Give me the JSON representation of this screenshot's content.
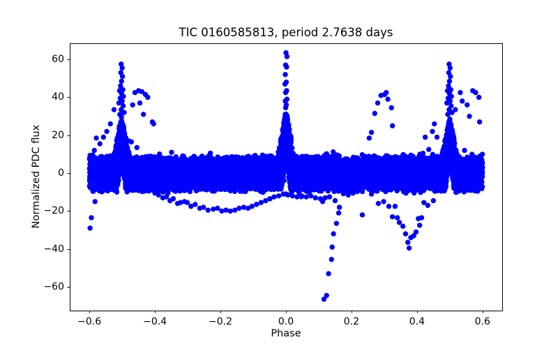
{
  "window": {
    "background": "#ffffff"
  },
  "chart_data": {
    "type": "scatter",
    "title": "TIC 0160585813, period 2.7638 days",
    "xlabel": "Phase",
    "ylabel": "Normalized PDC flux",
    "xlim": [
      -0.66,
      0.66
    ],
    "ylim": [
      -72.5,
      68.5
    ],
    "xticks": [
      -0.6,
      -0.4,
      -0.2,
      0.0,
      0.2,
      0.4,
      0.6
    ],
    "xtick_labels": [
      "−0.6",
      "−0.4",
      "−0.2",
      "0.0",
      "0.2",
      "0.4",
      "0.6"
    ],
    "yticks": [
      60,
      40,
      20,
      0,
      -20,
      -40,
      -60
    ],
    "ytick_labels": [
      "60",
      "40",
      "20",
      "0",
      "−20",
      "−40",
      "−60"
    ],
    "grid": false,
    "legend": null,
    "axis_color": "#000000",
    "marker": {
      "shape": "circle",
      "color": "#0000ff",
      "radius_px": 3.7
    },
    "description": "Phase-folded light curve: dense noise band around flux 0 spanning phase -0.6 to 0.6, narrow brightening spikes at phases -0.5, 0.0 and +0.5 (sparse columns above reaching ~64 at center, ~58 at sides), scattered outlier arcs below the band, a deep dip to ~-66 near phase 0.12 and a V-shaped dip to ~-40 near phase 0.38",
    "components": {
      "noise_band": {
        "x_min": -0.6,
        "x_max": 0.6,
        "y_top": 8.2,
        "y_bottom": -8.8,
        "edge_sigma": 1.0,
        "n_points": 6500,
        "seed": 20240613
      },
      "eclipse_peaks": [
        {
          "center": -0.502,
          "width": 0.026,
          "height": 29,
          "notch_width": 0.013,
          "n_points": 600
        },
        {
          "center": 0.0,
          "width": 0.026,
          "height": 33,
          "notch_width": 0.014,
          "n_points": 700
        },
        {
          "center": 0.5,
          "width": 0.026,
          "height": 29,
          "notch_width": 0.013,
          "n_points": 600
        }
      ],
      "outliers": {
        "above_center_peak": [
          [
            0.0,
            63.5
          ],
          [
            0.003,
            61.5
          ],
          [
            -0.001,
            57.0
          ],
          [
            0.002,
            56.0
          ],
          [
            -0.002,
            52.0
          ],
          [
            0.001,
            48.0
          ],
          [
            -0.003,
            47.0
          ],
          [
            0.002,
            43.5
          ],
          [
            -0.001,
            42.5
          ],
          [
            0.003,
            39.0
          ],
          [
            -0.002,
            38.0
          ],
          [
            0.001,
            36.0
          ],
          [
            -0.001,
            34.5
          ]
        ],
        "above_left_peak": [
          [
            -0.503,
            57.5
          ],
          [
            -0.5,
            55.5
          ],
          [
            -0.504,
            53.0
          ],
          [
            -0.499,
            51.0
          ],
          [
            -0.502,
            48.5
          ],
          [
            -0.505,
            46.0
          ],
          [
            -0.498,
            44.0
          ],
          [
            -0.508,
            43.5
          ],
          [
            -0.502,
            42.0
          ],
          [
            -0.496,
            40.5
          ],
          [
            -0.506,
            39.5
          ],
          [
            -0.5,
            38.0
          ],
          [
            -0.51,
            37.0
          ],
          [
            -0.497,
            35.5
          ],
          [
            -0.503,
            33.5
          ],
          [
            -0.494,
            32.0
          ],
          [
            -0.507,
            31.0
          ]
        ],
        "above_right_peak": [
          [
            0.498,
            57.5
          ],
          [
            0.501,
            55.5
          ],
          [
            0.497,
            53.0
          ],
          [
            0.502,
            51.0
          ],
          [
            0.499,
            48.5
          ],
          [
            0.496,
            46.0
          ],
          [
            0.503,
            44.0
          ],
          [
            0.493,
            43.5
          ],
          [
            0.499,
            42.0
          ],
          [
            0.505,
            40.5
          ],
          [
            0.495,
            39.5
          ],
          [
            0.501,
            38.0
          ],
          [
            0.491,
            37.0
          ],
          [
            0.504,
            35.5
          ],
          [
            0.498,
            33.5
          ],
          [
            0.507,
            32.0
          ],
          [
            0.494,
            31.0
          ]
        ],
        "left_peak_shoulders": [
          [
            -0.585,
            12.0
          ],
          [
            -0.579,
            18.5
          ],
          [
            -0.568,
            15.5
          ],
          [
            -0.557,
            19.0
          ],
          [
            -0.547,
            22.0
          ],
          [
            -0.536,
            26.0
          ],
          [
            -0.525,
            33.5
          ],
          [
            -0.487,
            14.0
          ],
          [
            -0.48,
            17.0
          ],
          [
            -0.472,
            16.5
          ],
          [
            -0.468,
            36.0
          ],
          [
            -0.461,
            42.5
          ],
          [
            -0.455,
            13.5
          ],
          [
            -0.45,
            43.5
          ],
          [
            -0.446,
            37.0
          ],
          [
            -0.44,
            43.0
          ],
          [
            -0.435,
            31.0
          ],
          [
            -0.429,
            41.5
          ],
          [
            -0.422,
            40.0
          ],
          [
            -0.408,
            27.0
          ],
          [
            -0.404,
            26.0
          ]
        ],
        "right_peak_shoulders": [
          [
            0.418,
            10.5
          ],
          [
            0.425,
            19.0
          ],
          [
            0.436,
            12.5
          ],
          [
            0.447,
            22.0
          ],
          [
            0.453,
            26.0
          ],
          [
            0.461,
            19.0
          ],
          [
            0.517,
            33.5
          ],
          [
            0.532,
            42.5
          ],
          [
            0.538,
            38.0
          ],
          [
            0.545,
            12.0
          ],
          [
            0.553,
            36.0
          ],
          [
            0.56,
            30.0
          ],
          [
            0.57,
            43.5
          ],
          [
            0.579,
            42.5
          ],
          [
            0.589,
            40.0
          ],
          [
            0.591,
            27.0
          ]
        ],
        "left_edge_drop": [
          [
            -0.583,
            -15.0
          ],
          [
            -0.594,
            -23.5
          ],
          [
            -0.598,
            -29.0
          ]
        ],
        "lower_arc": [
          [
            -0.4,
            -10.5
          ],
          [
            -0.389,
            -11.5
          ],
          [
            -0.376,
            -13.0
          ],
          [
            -0.365,
            -12.5
          ],
          [
            -0.354,
            -14.5
          ],
          [
            -0.344,
            -13.5
          ],
          [
            -0.331,
            -16.0
          ],
          [
            -0.322,
            -15.5
          ],
          [
            -0.31,
            -15.0
          ],
          [
            -0.301,
            -15.5
          ],
          [
            -0.29,
            -17.5
          ],
          [
            -0.277,
            -16.5
          ],
          [
            -0.263,
            -18.5
          ],
          [
            -0.252,
            -18.0
          ],
          [
            -0.238,
            -19.5
          ],
          [
            -0.222,
            -19.0
          ],
          [
            -0.209,
            -18.5
          ],
          [
            -0.196,
            -20.0
          ],
          [
            -0.183,
            -19.5
          ],
          [
            -0.17,
            -20.0
          ],
          [
            -0.156,
            -19.5
          ],
          [
            -0.143,
            -18.5
          ],
          [
            -0.129,
            -18.0
          ],
          [
            -0.116,
            -18.5
          ],
          [
            -0.104,
            -17.5
          ],
          [
            -0.09,
            -16.5
          ],
          [
            -0.076,
            -15.5
          ],
          [
            -0.062,
            -14.5
          ],
          [
            -0.049,
            -13.5
          ],
          [
            -0.036,
            -12.5
          ],
          [
            -0.022,
            -12.0
          ],
          [
            -0.008,
            -11.0
          ],
          [
            0.006,
            -11.5
          ],
          [
            0.02,
            -12.0
          ],
          [
            0.034,
            -12.5
          ],
          [
            0.048,
            -12.0
          ],
          [
            0.062,
            -12.5
          ],
          [
            0.076,
            -12.0
          ],
          [
            0.09,
            -13.0
          ]
        ],
        "deep_dip": [
          [
            0.105,
            -13.5
          ],
          [
            0.112,
            -15.0
          ],
          [
            0.12,
            -13.0
          ],
          [
            0.133,
            -12.5
          ],
          [
            0.15,
            -14.5
          ],
          [
            0.163,
            -18.0
          ],
          [
            0.161,
            -21.0
          ],
          [
            0.154,
            -26.5
          ],
          [
            0.145,
            -32.0
          ],
          [
            0.141,
            -39.0
          ],
          [
            0.139,
            -45.5
          ],
          [
            0.13,
            -53.0
          ],
          [
            0.124,
            -64.5
          ],
          [
            0.116,
            -66.5
          ]
        ],
        "secondary_dip": [
          [
            0.282,
            -16.0
          ],
          [
            0.298,
            -15.0
          ],
          [
            0.314,
            -17.5
          ],
          [
            0.325,
            -23.0
          ],
          [
            0.333,
            -17.5
          ],
          [
            0.34,
            -23.5
          ],
          [
            0.346,
            -26.0
          ],
          [
            0.357,
            -28.0
          ],
          [
            0.365,
            -32.0
          ],
          [
            0.372,
            -36.5
          ],
          [
            0.376,
            -39.5
          ],
          [
            0.381,
            -34.0
          ],
          [
            0.39,
            -33.0
          ],
          [
            0.397,
            -31.0
          ],
          [
            0.404,
            -24.0
          ],
          [
            0.408,
            -27.5
          ],
          [
            0.414,
            -23.5
          ],
          [
            0.421,
            -15.5
          ],
          [
            0.433,
            -17.0
          ],
          [
            0.45,
            -14.5
          ]
        ],
        "upper_arch": [
          [
            0.254,
            18.5
          ],
          [
            0.261,
            21.5
          ],
          [
            0.271,
            31.5
          ],
          [
            0.28,
            37.0
          ],
          [
            0.29,
            41.0
          ],
          [
            0.301,
            41.5
          ],
          [
            0.306,
            42.5
          ],
          [
            0.311,
            39.0
          ],
          [
            0.322,
            34.5
          ],
          [
            0.325,
            25.0
          ]
        ],
        "misc": [
          [
            0.233,
            -22.0
          ],
          [
            0.261,
            -11.0
          ],
          [
            0.19,
            -11.5
          ],
          [
            0.205,
            -10.5
          ],
          [
            0.0,
            -11.0
          ],
          [
            -0.006,
            -4.0
          ],
          [
            -0.59,
            9.5
          ]
        ]
      }
    }
  }
}
